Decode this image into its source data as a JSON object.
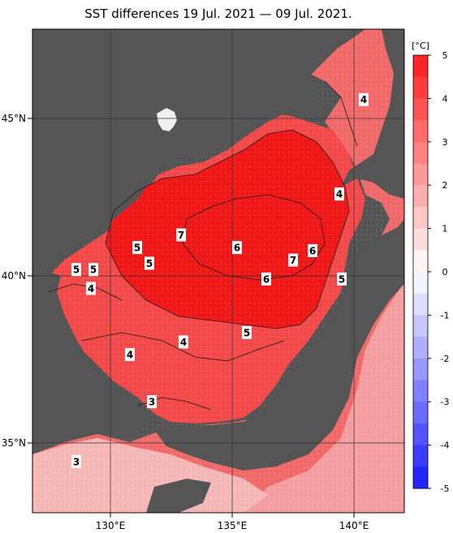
{
  "title": "SST differences 19 Jul. 2021 — 09 Jul. 2021.",
  "colors": {
    "land": "#555555",
    "ocean_hot": "#f01818",
    "ocean_warm": "#f44a4a",
    "ocean_mid": "#f26b6b",
    "ocean_cool": "#f59a9a",
    "ocean_pale": "#f8c4c4",
    "grid": "#333333",
    "contour": "#1a1a1a"
  },
  "map": {
    "lon_ticks": [
      "130°E",
      "135°E",
      "140°E"
    ],
    "lat_ticks": [
      "45°N",
      "40°N",
      "35°N"
    ],
    "contour_labels": [
      {
        "text": "4",
        "lon": 140.4,
        "lat": 45.6
      },
      {
        "text": "4",
        "lon": 139.4,
        "lat": 42.6
      },
      {
        "text": "7",
        "lon": 132.9,
        "lat": 41.3
      },
      {
        "text": "5",
        "lon": 131.1,
        "lat": 40.9
      },
      {
        "text": "6",
        "lon": 135.2,
        "lat": 40.9
      },
      {
        "text": "6",
        "lon": 138.3,
        "lat": 40.8
      },
      {
        "text": "7",
        "lon": 137.5,
        "lat": 40.5
      },
      {
        "text": "5",
        "lon": 131.6,
        "lat": 40.4
      },
      {
        "text": "5",
        "lon": 129.3,
        "lat": 40.2
      },
      {
        "text": "5",
        "lon": 128.6,
        "lat": 40.2
      },
      {
        "text": "6",
        "lon": 136.4,
        "lat": 39.9
      },
      {
        "text": "5",
        "lon": 139.5,
        "lat": 39.9
      },
      {
        "text": "4",
        "lon": 129.2,
        "lat": 39.6
      },
      {
        "text": "5",
        "lon": 135.6,
        "lat": 38.2
      },
      {
        "text": "4",
        "lon": 133.0,
        "lat": 37.9
      },
      {
        "text": "4",
        "lon": 130.8,
        "lat": 37.5
      },
      {
        "text": "3",
        "lon": 131.7,
        "lat": 36.0
      },
      {
        "text": "3",
        "lon": 128.6,
        "lat": 34.1
      }
    ]
  },
  "colorbar": {
    "unit": "[°C]",
    "ticks": [
      "5",
      "4",
      "3",
      "2",
      "1",
      "0",
      "-1",
      "-2",
      "-3",
      "-4",
      "-5"
    ]
  }
}
